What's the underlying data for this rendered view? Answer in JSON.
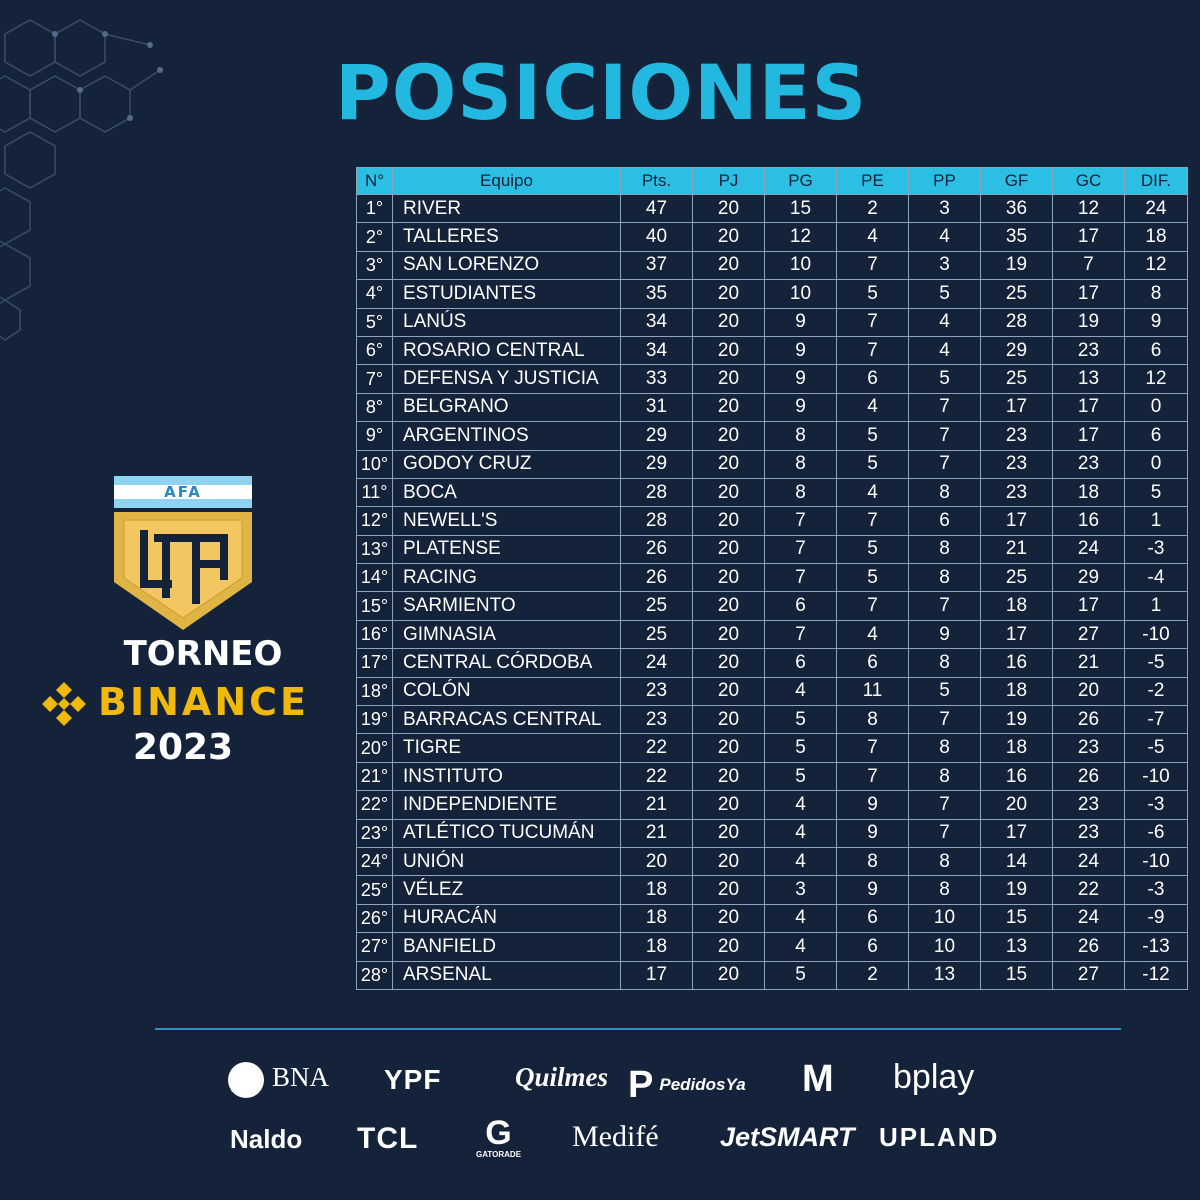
{
  "page": {
    "title": "POSICIONES"
  },
  "brand": {
    "afa": "AFA",
    "lpf_monogram": "LPF",
    "torneo": "TORNEO",
    "binance": "BINANCE",
    "year": "2023",
    "colors": {
      "accent": "#2cbfe4",
      "gold": "#e0b545",
      "binance": "#f0b90b",
      "background": "#14223a"
    }
  },
  "table": {
    "headers": [
      "N°",
      "Equipo",
      "Pts.",
      "PJ",
      "PG",
      "PE",
      "PP",
      "GF",
      "GC",
      "DIF."
    ],
    "rows": [
      [
        "1°",
        "RIVER",
        "47",
        "20",
        "15",
        "2",
        "3",
        "36",
        "12",
        "24"
      ],
      [
        "2°",
        "TALLERES",
        "40",
        "20",
        "12",
        "4",
        "4",
        "35",
        "17",
        "18"
      ],
      [
        "3°",
        "SAN LORENZO",
        "37",
        "20",
        "10",
        "7",
        "3",
        "19",
        "7",
        "12"
      ],
      [
        "4°",
        "ESTUDIANTES",
        "35",
        "20",
        "10",
        "5",
        "5",
        "25",
        "17",
        "8"
      ],
      [
        "5°",
        "LANÚS",
        "34",
        "20",
        "9",
        "7",
        "4",
        "28",
        "19",
        "9"
      ],
      [
        "6°",
        "ROSARIO CENTRAL",
        "34",
        "20",
        "9",
        "7",
        "4",
        "29",
        "23",
        "6"
      ],
      [
        "7°",
        "DEFENSA Y JUSTICIA",
        "33",
        "20",
        "9",
        "6",
        "5",
        "25",
        "13",
        "12"
      ],
      [
        "8°",
        "BELGRANO",
        "31",
        "20",
        "9",
        "4",
        "7",
        "17",
        "17",
        "0"
      ],
      [
        "9°",
        "ARGENTINOS",
        "29",
        "20",
        "8",
        "5",
        "7",
        "23",
        "17",
        "6"
      ],
      [
        "10°",
        "GODOY CRUZ",
        "29",
        "20",
        "8",
        "5",
        "7",
        "23",
        "23",
        "0"
      ],
      [
        "11°",
        "BOCA",
        "28",
        "20",
        "8",
        "4",
        "8",
        "23",
        "18",
        "5"
      ],
      [
        "12°",
        "NEWELL'S",
        "28",
        "20",
        "7",
        "7",
        "6",
        "17",
        "16",
        "1"
      ],
      [
        "13°",
        "PLATENSE",
        "26",
        "20",
        "7",
        "5",
        "8",
        "21",
        "24",
        "-3"
      ],
      [
        "14°",
        "RACING",
        "26",
        "20",
        "7",
        "5",
        "8",
        "25",
        "29",
        "-4"
      ],
      [
        "15°",
        "SARMIENTO",
        "25",
        "20",
        "6",
        "7",
        "7",
        "18",
        "17",
        "1"
      ],
      [
        "16°",
        "GIMNASIA",
        "25",
        "20",
        "7",
        "4",
        "9",
        "17",
        "27",
        "-10"
      ],
      [
        "17°",
        "CENTRAL CÓRDOBA",
        "24",
        "20",
        "6",
        "6",
        "8",
        "16",
        "21",
        "-5"
      ],
      [
        "18°",
        "COLÓN",
        "23",
        "20",
        "4",
        "11",
        "5",
        "18",
        "20",
        "-2"
      ],
      [
        "19°",
        "BARRACAS CENTRAL",
        "23",
        "20",
        "5",
        "8",
        "7",
        "19",
        "26",
        "-7"
      ],
      [
        "20°",
        "TIGRE",
        "22",
        "20",
        "5",
        "7",
        "8",
        "18",
        "23",
        "-5"
      ],
      [
        "21°",
        "INSTITUTO",
        "22",
        "20",
        "5",
        "7",
        "8",
        "16",
        "26",
        "-10"
      ],
      [
        "22°",
        "INDEPENDIENTE",
        "21",
        "20",
        "4",
        "9",
        "7",
        "20",
        "23",
        "-3"
      ],
      [
        "23°",
        "ATLÉTICO TUCUMÁN",
        "21",
        "20",
        "4",
        "9",
        "7",
        "17",
        "23",
        "-6"
      ],
      [
        "24°",
        "UNIÓN",
        "20",
        "20",
        "4",
        "8",
        "8",
        "14",
        "24",
        "-10"
      ],
      [
        "25°",
        "VÉLEZ",
        "18",
        "20",
        "3",
        "9",
        "8",
        "19",
        "22",
        "-3"
      ],
      [
        "26°",
        "HURACÁN",
        "18",
        "20",
        "4",
        "6",
        "10",
        "15",
        "24",
        "-9"
      ],
      [
        "27°",
        "BANFIELD",
        "18",
        "20",
        "4",
        "6",
        "10",
        "13",
        "26",
        "-13"
      ],
      [
        "28°",
        "ARSENAL",
        "17",
        "20",
        "5",
        "2",
        "13",
        "15",
        "27",
        "-12"
      ]
    ]
  },
  "sponsors": {
    "bna": "BNA",
    "ypf": "YPF",
    "quilmes": "Quilmes",
    "pedidosya": "PedidosYa",
    "mcdonalds": "M",
    "bplay": "bplay",
    "naldo": "Naldo",
    "tcl": "TCL",
    "gatorade": "GATORADE",
    "gatorade_mark": "G",
    "medife": "Medifé",
    "jetsmart": "JetSMART",
    "upland": "UPLAND"
  }
}
